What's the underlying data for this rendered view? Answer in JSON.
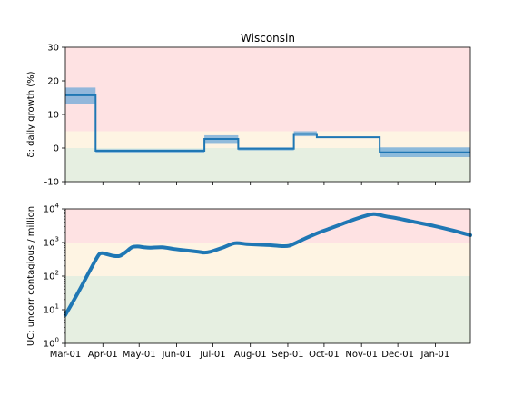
{
  "chart_data": [
    {
      "type": "line",
      "title": "Wisconsin",
      "ylabel": "δ: daily growth (%)",
      "xlabel": "",
      "ylim": [
        -10,
        30
      ],
      "yticks": [
        -10,
        0,
        10,
        20,
        30
      ],
      "xlim_days": [
        0,
        335
      ],
      "zones": [
        {
          "from": -10,
          "to": 0,
          "color": "#e6efe1"
        },
        {
          "from": 0,
          "to": 5,
          "color": "#fef4e3"
        },
        {
          "from": 5,
          "to": 30,
          "color": "#fee2e3"
        }
      ],
      "steps": [
        {
          "from": 0,
          "to": 25,
          "value": 15.7,
          "low": 13,
          "high": 18
        },
        {
          "from": 25,
          "to": 115,
          "value": -0.8,
          "low": -1.4,
          "high": -0.4
        },
        {
          "from": 115,
          "to": 143,
          "value": 2.7,
          "low": 1.5,
          "high": 3.8
        },
        {
          "from": 143,
          "to": 189,
          "value": -0.2,
          "low": -0.7,
          "high": 0.2
        },
        {
          "from": 189,
          "to": 208,
          "value": 4.2,
          "low": 3.5,
          "high": 5
        },
        {
          "from": 208,
          "to": 260,
          "value": 3.2,
          "low": 3.0,
          "high": 3.4
        },
        {
          "from": 260,
          "to": 335,
          "value": -1.3,
          "low": -2.7,
          "high": 0.2
        }
      ],
      "line_color": "#1f77b4",
      "band_color": "#6ea8d8"
    },
    {
      "type": "line",
      "title": "",
      "ylabel": "UC: uncorr contagious / million",
      "xlabel": "",
      "yscale": "log",
      "ylim": [
        1,
        10000
      ],
      "yticks": [
        "10^0",
        "10^1",
        "10^2",
        "10^3",
        "10^4"
      ],
      "zones": [
        {
          "from": 1,
          "to": 100,
          "color": "#e6efe1"
        },
        {
          "from": 100,
          "to": 1000,
          "color": "#fef4e3"
        },
        {
          "from": 1000,
          "to": 10000,
          "color": "#fee2e3"
        }
      ],
      "x_days": [
        0,
        10,
        20,
        27,
        30,
        35,
        40,
        45,
        50,
        55,
        60,
        65,
        70,
        80,
        90,
        100,
        110,
        115,
        120,
        130,
        140,
        150,
        160,
        170,
        180,
        185,
        190,
        200,
        210,
        220,
        230,
        240,
        250,
        255,
        260,
        265,
        275,
        290,
        305,
        320,
        335
      ],
      "y": [
        7,
        30,
        140,
        400,
        480,
        440,
        400,
        400,
        520,
        720,
        760,
        720,
        700,
        720,
        640,
        580,
        530,
        500,
        530,
        700,
        950,
        900,
        860,
        830,
        780,
        800,
        950,
        1400,
        2000,
        2700,
        3700,
        5000,
        6500,
        7000,
        6600,
        6000,
        5200,
        4000,
        3100,
        2300,
        1650
      ],
      "line_color": "#1f77b4"
    }
  ],
  "x_axis": {
    "labels": [
      "Mar-01",
      "Apr-01",
      "May-01",
      "Jun-01",
      "Jul-01",
      "Aug-01",
      "Sep-01",
      "Oct-01",
      "Nov-01",
      "Dec-01",
      "Jan-01"
    ],
    "label_days": [
      0,
      31,
      61,
      92,
      122,
      153,
      184,
      214,
      245,
      275,
      306
    ]
  }
}
